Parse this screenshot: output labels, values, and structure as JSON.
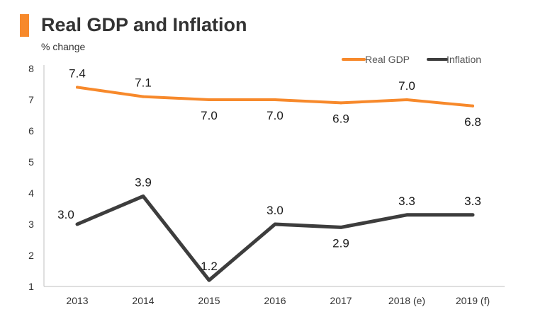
{
  "title": "Real GDP and Inflation",
  "subtitle": "% change",
  "colors": {
    "gdp": "#F7892B",
    "inflation": "#3D3D3D",
    "accent": "#F7892B",
    "axis": "#BFBFBF",
    "text": "#333333"
  },
  "chart_data": {
    "type": "line",
    "title": "Real GDP and Inflation",
    "ylabel": "% change",
    "xlabel": "",
    "categories": [
      "2013",
      "2014",
      "2015",
      "2016",
      "2017",
      "2018 (e)",
      "2019 (f)"
    ],
    "ylim": [
      1,
      8
    ],
    "yticks": [
      "1",
      "2",
      "3",
      "4",
      "5",
      "6",
      "7",
      "8"
    ],
    "grid": false,
    "legend": "top-right",
    "series": [
      {
        "name": "Real GDP",
        "values": [
          7.4,
          7.1,
          7.0,
          7.0,
          6.9,
          7.0,
          6.8
        ],
        "labels": [
          "7.4",
          "7.1",
          "7.0",
          "7.0",
          "6.9",
          "7.0",
          "6.8"
        ]
      },
      {
        "name": "Inflation",
        "values": [
          3.0,
          3.9,
          1.2,
          3.0,
          2.9,
          3.3,
          3.3
        ],
        "labels": [
          "3.0",
          "3.9",
          "1.2",
          "3.0",
          "2.9",
          "3.3",
          "3.3"
        ]
      }
    ]
  }
}
